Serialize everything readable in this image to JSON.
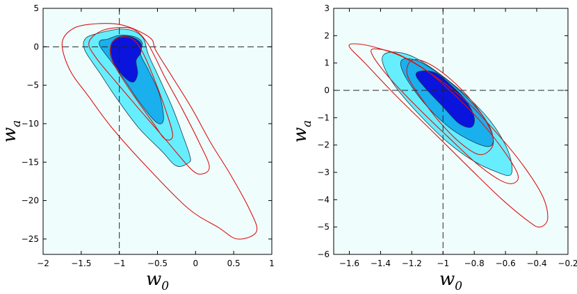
{
  "chart_data": [
    {
      "type": "contour",
      "xlabel": "w",
      "xlabel_sub": "0",
      "ylabel": "w",
      "ylabel_sub": "a",
      "xlim": [
        -2,
        1
      ],
      "ylim": [
        -27,
        5
      ],
      "xticks": [
        -2,
        -1.5,
        -1,
        -0.5,
        0,
        0.5,
        1
      ],
      "xtick_labels": [
        "−2",
        "−1.5",
        "−1",
        "−0.5",
        "0",
        "0.5",
        "1"
      ],
      "yticks": [
        5,
        0,
        -5,
        -10,
        -15,
        -20,
        -25
      ],
      "ytick_labels": [
        "5",
        "0",
        "−5",
        "−10",
        "−15",
        "−20",
        "−25"
      ],
      "reference_lines": {
        "x": -1,
        "y": 0
      },
      "background_color": "#f0fdfd",
      "frame_color": "#000000",
      "filled_contours": [
        {
          "level": "outer",
          "color": "#66eeff",
          "points": [
            [
              -1.3,
              1.7
            ],
            [
              -1.0,
              2.3
            ],
            [
              -0.8,
              2.0
            ],
            [
              -0.68,
              1.0
            ],
            [
              -0.62,
              -1.0
            ],
            [
              -0.48,
              -4.0
            ],
            [
              -0.3,
              -8.0
            ],
            [
              -0.15,
              -12.0
            ],
            [
              -0.08,
              -14.0
            ],
            [
              -0.08,
              -15.0
            ],
            [
              -0.25,
              -15.5
            ],
            [
              -0.45,
              -13.5
            ],
            [
              -0.75,
              -10.5
            ],
            [
              -1.05,
              -6.5
            ],
            [
              -1.25,
              -3.5
            ],
            [
              -1.45,
              -0.5
            ],
            [
              -1.45,
              1.0
            ]
          ]
        },
        {
          "level": "middle",
          "color": "#1ab0ee",
          "points": [
            [
              -1.15,
              1.0
            ],
            [
              -1.0,
              1.5
            ],
            [
              -0.8,
              1.3
            ],
            [
              -0.7,
              0.5
            ],
            [
              -0.72,
              -1.0
            ],
            [
              -0.62,
              -3.0
            ],
            [
              -0.48,
              -6.0
            ],
            [
              -0.42,
              -9.0
            ],
            [
              -0.45,
              -10.0
            ],
            [
              -0.55,
              -9.5
            ],
            [
              -0.75,
              -7.0
            ],
            [
              -0.92,
              -4.5
            ],
            [
              -1.1,
              -2.0
            ],
            [
              -1.25,
              0.0
            ],
            [
              -1.25,
              0.8
            ]
          ]
        },
        {
          "level": "inner",
          "color": "#0a14dd",
          "points": [
            [
              -1.0,
              1.3
            ],
            [
              -0.85,
              1.3
            ],
            [
              -0.72,
              0.5
            ],
            [
              -0.72,
              -0.8
            ],
            [
              -0.78,
              -1.8
            ],
            [
              -0.76,
              -3.5
            ],
            [
              -0.82,
              -4.6
            ],
            [
              -0.95,
              -3.8
            ],
            [
              -1.08,
              -2.0
            ],
            [
              -1.12,
              -0.8
            ],
            [
              -1.1,
              0.5
            ]
          ]
        }
      ],
      "line_contours": [
        {
          "level": "outer",
          "color": "#dd1111",
          "points": [
            [
              -1.75,
              0.5
            ],
            [
              -1.6,
              2.4
            ],
            [
              -1.3,
              3.0
            ],
            [
              -0.95,
              2.8
            ],
            [
              -0.6,
              1.2
            ],
            [
              -0.52,
              -0.5
            ],
            [
              -0.3,
              -4.0
            ],
            [
              -0.05,
              -8.0
            ],
            [
              0.2,
              -12.5
            ],
            [
              0.45,
              -16.5
            ],
            [
              0.7,
              -21.0
            ],
            [
              0.8,
              -24.0
            ],
            [
              0.55,
              -25.0
            ],
            [
              0.3,
              -23.5
            ],
            [
              -0.1,
              -21.0
            ],
            [
              -0.65,
              -15.5
            ],
            [
              -1.1,
              -10.5
            ],
            [
              -1.4,
              -6.5
            ],
            [
              -1.65,
              -3.0
            ]
          ]
        },
        {
          "level": "inner",
          "color": "#dd1111",
          "points": [
            [
              -1.4,
              0.5
            ],
            [
              -1.25,
              2.0
            ],
            [
              -1.0,
              2.5
            ],
            [
              -0.8,
              2.2
            ],
            [
              -0.62,
              0.3
            ],
            [
              -0.4,
              -4.0
            ],
            [
              -0.18,
              -8.0
            ],
            [
              0.05,
              -12.5
            ],
            [
              0.18,
              -15.5
            ],
            [
              0.1,
              -16.5
            ],
            [
              -0.05,
              -16.0
            ],
            [
              -0.4,
              -12.0
            ],
            [
              -0.75,
              -8.0
            ],
            [
              -1.05,
              -4.5
            ],
            [
              -1.3,
              -1.5
            ]
          ]
        },
        {
          "level": "innermost",
          "color": "#dd1111",
          "points": [
            [
              -1.1,
              0.5
            ],
            [
              -0.95,
              1.3
            ],
            [
              -0.8,
              0.8
            ],
            [
              -0.68,
              -1.0
            ],
            [
              -0.55,
              -4.0
            ],
            [
              -0.4,
              -8.0
            ],
            [
              -0.3,
              -11.5
            ],
            [
              -0.4,
              -12.0
            ],
            [
              -0.55,
              -10.0
            ],
            [
              -0.8,
              -6.5
            ],
            [
              -1.0,
              -3.5
            ],
            [
              -1.1,
              -1.5
            ]
          ]
        }
      ]
    },
    {
      "type": "contour",
      "xlabel": "w",
      "xlabel_sub": "0",
      "ylabel": "w",
      "ylabel_sub": "a",
      "xlim": [
        -1.7,
        -0.2
      ],
      "ylim": [
        -6,
        3
      ],
      "xticks": [
        -1.6,
        -1.4,
        -1.2,
        -1,
        -0.8,
        -0.6,
        -0.4,
        -0.2
      ],
      "xtick_labels": [
        "−1.6",
        "−1.4",
        "−1.2",
        "−1",
        "−0.8",
        "−0.6",
        "−0.4",
        "−0.2"
      ],
      "yticks": [
        3,
        2,
        1,
        0,
        -1,
        -2,
        -3,
        -4,
        -5,
        -6
      ],
      "ytick_labels": [
        "3",
        "2",
        "1",
        "0",
        "−1",
        "−2",
        "−3",
        "−4",
        "−5",
        "−6"
      ],
      "reference_lines": {
        "x": -1,
        "y": 0
      },
      "background_color": "#f0fdfd",
      "frame_color": "#000000",
      "filled_contours": [
        {
          "level": "outer",
          "color": "#66eeff",
          "points": [
            [
              -1.38,
              1.3
            ],
            [
              -1.3,
              1.4
            ],
            [
              -1.18,
              1.2
            ],
            [
              -1.02,
              0.6
            ],
            [
              -0.85,
              -0.2
            ],
            [
              -0.7,
              -1.1
            ],
            [
              -0.6,
              -2.0
            ],
            [
              -0.56,
              -2.7
            ],
            [
              -0.57,
              -3.1
            ],
            [
              -0.65,
              -3.0
            ],
            [
              -0.8,
              -2.6
            ],
            [
              -0.97,
              -1.9
            ],
            [
              -1.15,
              -0.9
            ],
            [
              -1.3,
              0.1
            ],
            [
              -1.38,
              0.9
            ]
          ]
        },
        {
          "level": "middle",
          "color": "#1ab0ee",
          "points": [
            [
              -1.25,
              1.15
            ],
            [
              -1.15,
              1.05
            ],
            [
              -1.0,
              0.5
            ],
            [
              -0.85,
              -0.25
            ],
            [
              -0.73,
              -1.05
            ],
            [
              -0.68,
              -1.7
            ],
            [
              -0.7,
              -2.05
            ],
            [
              -0.8,
              -1.9
            ],
            [
              -0.95,
              -1.4
            ],
            [
              -1.1,
              -0.6
            ],
            [
              -1.22,
              0.3
            ],
            [
              -1.27,
              0.9
            ]
          ]
        },
        {
          "level": "inner",
          "color": "#0a14dd",
          "points": [
            [
              -1.15,
              0.7
            ],
            [
              -1.05,
              0.65
            ],
            [
              -0.95,
              0.2
            ],
            [
              -0.85,
              -0.4
            ],
            [
              -0.8,
              -1.0
            ],
            [
              -0.82,
              -1.35
            ],
            [
              -0.9,
              -1.2
            ],
            [
              -1.0,
              -0.6
            ],
            [
              -1.1,
              0.0
            ],
            [
              -1.17,
              0.5
            ]
          ]
        }
      ],
      "line_contours": [
        {
          "level": "outer",
          "color": "#dd1111",
          "points": [
            [
              -1.6,
              1.6
            ],
            [
              -1.55,
              1.7
            ],
            [
              -1.42,
              1.55
            ],
            [
              -1.25,
              1.2
            ],
            [
              -1.05,
              0.5
            ],
            [
              -0.85,
              -0.4
            ],
            [
              -0.65,
              -1.6
            ],
            [
              -0.48,
              -2.8
            ],
            [
              -0.36,
              -3.9
            ],
            [
              -0.33,
              -4.7
            ],
            [
              -0.38,
              -5.0
            ],
            [
              -0.45,
              -4.8
            ],
            [
              -0.62,
              -4.0
            ],
            [
              -0.82,
              -2.9
            ],
            [
              -1.05,
              -1.6
            ],
            [
              -1.3,
              -0.2
            ],
            [
              -1.5,
              1.0
            ]
          ]
        },
        {
          "level": "middle",
          "color": "#dd1111",
          "points": [
            [
              -1.46,
              1.4
            ],
            [
              -1.4,
              1.5
            ],
            [
              -1.28,
              1.3
            ],
            [
              -1.1,
              0.7
            ],
            [
              -0.92,
              -0.2
            ],
            [
              -0.75,
              -1.2
            ],
            [
              -0.6,
              -2.3
            ],
            [
              -0.52,
              -3.1
            ],
            [
              -0.55,
              -3.4
            ],
            [
              -0.63,
              -3.3
            ],
            [
              -0.78,
              -2.7
            ],
            [
              -0.95,
              -1.8
            ],
            [
              -1.15,
              -0.7
            ],
            [
              -1.35,
              0.5
            ]
          ]
        },
        {
          "level": "inner",
          "color": "#dd1111",
          "points": [
            [
              -1.2,
              1.1
            ],
            [
              -1.1,
              1.0
            ],
            [
              -0.95,
              0.4
            ],
            [
              -0.8,
              -0.5
            ],
            [
              -0.7,
              -1.4
            ],
            [
              -0.68,
              -2.0
            ],
            [
              -0.75,
              -2.35
            ],
            [
              -0.85,
              -2.1
            ],
            [
              -1.0,
              -1.3
            ],
            [
              -1.15,
              -0.2
            ],
            [
              -1.23,
              0.6
            ]
          ]
        }
      ]
    }
  ]
}
